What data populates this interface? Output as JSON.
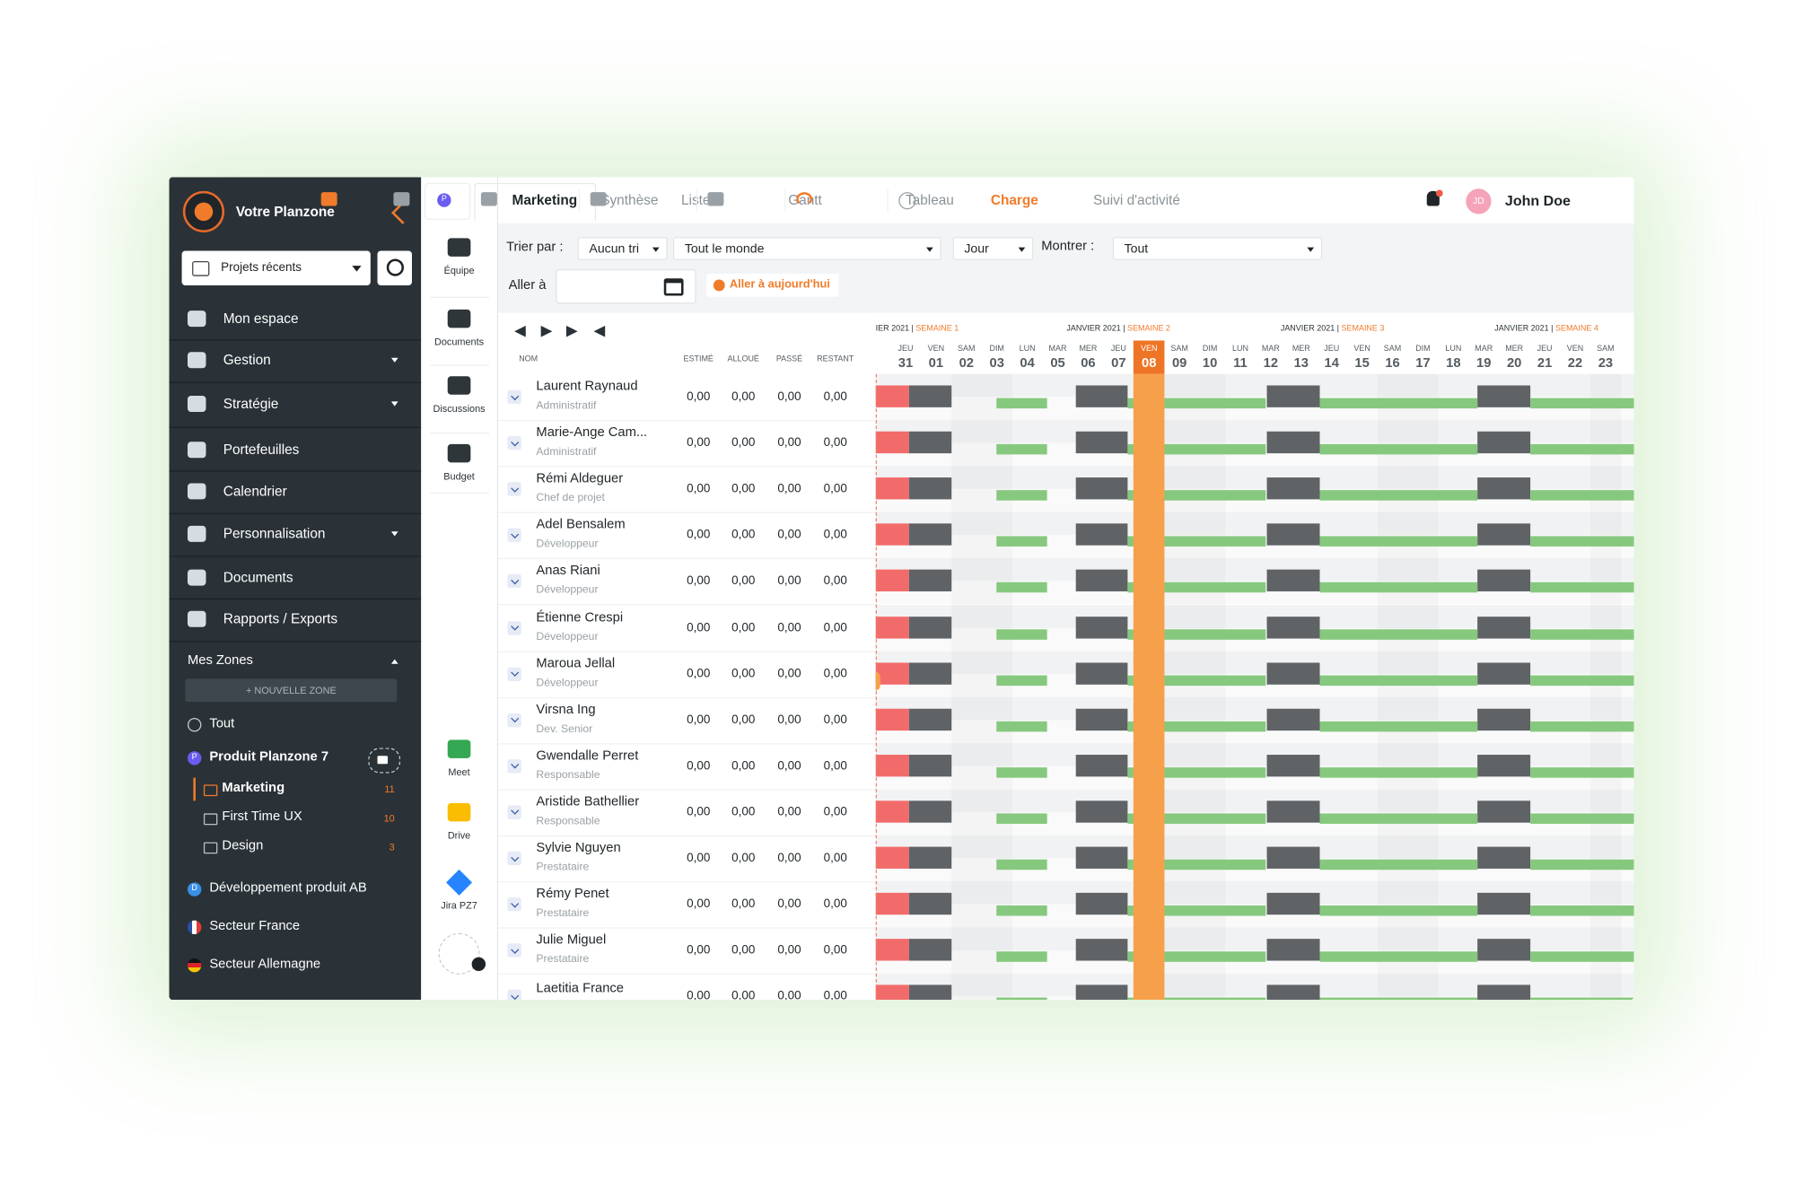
{
  "sidebar": {
    "brand": "Votre Planzone",
    "recent": "Projets récents",
    "nav": [
      {
        "label": "Mon espace"
      },
      {
        "label": "Gestion",
        "caret": true
      },
      {
        "label": "Stratégie",
        "caret": true
      },
      {
        "label": "Portefeuilles"
      },
      {
        "label": "Calendrier"
      },
      {
        "label": "Personnalisation",
        "caret": true
      },
      {
        "label": "Documents"
      },
      {
        "label": "Rapports / Exports"
      }
    ],
    "zones_title": "Mes Zones",
    "new_zone": "+ NOUVELLE ZONE",
    "zones": [
      {
        "label": "Tout"
      },
      {
        "label": "Produit Planzone 7",
        "badge": "P"
      },
      {
        "label": "Marketing",
        "count": 11
      },
      {
        "label": "First Time UX",
        "count": 10
      },
      {
        "label": "Design",
        "count": 3
      },
      {
        "label": "Développement produit AB",
        "badge": "D"
      },
      {
        "label": "Secteur France"
      },
      {
        "label": "Secteur Allemagne"
      }
    ]
  },
  "tools": [
    "Équipe",
    "Documents",
    "Discussions",
    "Budget",
    "Meet",
    "Drive",
    "Jira PZ7"
  ],
  "topbar": {
    "badge": "P",
    "tabs": [
      "Marketing",
      "Synthèse",
      "Listes",
      "Gantt",
      "Tableau",
      "Charge",
      "Suivi d'activité"
    ],
    "initials": "JD",
    "user": "John Doe"
  },
  "filters": {
    "sort_label": "Trier par :",
    "sort": "Aucun tri",
    "people": "Tout le monde",
    "scale": "Jour",
    "show_label": "Montrer :",
    "show": "Tout",
    "goto_label": "Aller à",
    "today_button": "Aller à aujourd'hui"
  },
  "table": {
    "columns": [
      "NOM",
      "ESTIMÉ",
      "ALLOUÉ",
      "PASSÉ",
      "RESTANT"
    ],
    "rows": [
      {
        "name": "Laurent Raynaud",
        "role": "Administratif",
        "values": [
          "0,00",
          "0,00",
          "0,00",
          "0,00"
        ]
      },
      {
        "name": "Marie-Ange Cam...",
        "role": "Administratif",
        "values": [
          "0,00",
          "0,00",
          "0,00",
          "0,00"
        ]
      },
      {
        "name": "Rémi Aldeguer",
        "role": "Chef de projet",
        "values": [
          "0,00",
          "0,00",
          "0,00",
          "0,00"
        ]
      },
      {
        "name": "Adel Bensalem",
        "role": "Développeur",
        "values": [
          "0,00",
          "0,00",
          "0,00",
          "0,00"
        ]
      },
      {
        "name": "Anas Riani",
        "role": "Développeur",
        "values": [
          "0,00",
          "0,00",
          "0,00",
          "0,00"
        ]
      },
      {
        "name": "Étienne Crespi",
        "role": "Développeur",
        "values": [
          "0,00",
          "0,00",
          "0,00",
          "0,00"
        ]
      },
      {
        "name": "Maroua Jellal",
        "role": "Développeur",
        "values": [
          "0,00",
          "0,00",
          "0,00",
          "0,00"
        ]
      },
      {
        "name": "Virsna Ing",
        "role": "Dev. Senior",
        "values": [
          "0,00",
          "0,00",
          "0,00",
          "0,00"
        ]
      },
      {
        "name": "Gwendalle Perret",
        "role": "Responsable",
        "values": [
          "0,00",
          "0,00",
          "0,00",
          "0,00"
        ]
      },
      {
        "name": "Aristide Bathellier",
        "role": "Responsable",
        "values": [
          "0,00",
          "0,00",
          "0,00",
          "0,00"
        ]
      },
      {
        "name": "Sylvie Nguyen",
        "role": "Prestataire",
        "values": [
          "0,00",
          "0,00",
          "0,00",
          "0,00"
        ]
      },
      {
        "name": "Rémy Penet",
        "role": "Prestataire",
        "values": [
          "0,00",
          "0,00",
          "0,00",
          "0,00"
        ]
      },
      {
        "name": "Julie Miguel",
        "role": "Prestataire",
        "values": [
          "0,00",
          "0,00",
          "0,00",
          "0,00"
        ]
      },
      {
        "name": "Laetitia France",
        "values": [
          "0,00",
          "0,00",
          "0,00",
          "0,00"
        ]
      }
    ]
  },
  "calendar": {
    "weeks": [
      {
        "month": "IER 2021 |",
        "week": "SEMAINE 1"
      },
      {
        "month": "JANVIER 2021 |",
        "week": "SEMAINE 2"
      },
      {
        "month": "JANVIER 2021 |",
        "week": "SEMAINE 3"
      },
      {
        "month": "JANVIER 2021 |",
        "week": "SEMAINE 4"
      }
    ],
    "days": [
      {
        "wd": "JEU",
        "d": "31"
      },
      {
        "wd": "VEN",
        "d": "01"
      },
      {
        "wd": "SAM",
        "d": "02"
      },
      {
        "wd": "DIM",
        "d": "03"
      },
      {
        "wd": "LUN",
        "d": "04"
      },
      {
        "wd": "MAR",
        "d": "05"
      },
      {
        "wd": "MER",
        "d": "06"
      },
      {
        "wd": "JEU",
        "d": "07"
      },
      {
        "wd": "VEN",
        "d": "08",
        "today": true
      },
      {
        "wd": "SAM",
        "d": "09"
      },
      {
        "wd": "DIM",
        "d": "10"
      },
      {
        "wd": "LUN",
        "d": "11"
      },
      {
        "wd": "MAR",
        "d": "12"
      },
      {
        "wd": "MER",
        "d": "13"
      },
      {
        "wd": "JEU",
        "d": "14"
      },
      {
        "wd": "VEN",
        "d": "15"
      },
      {
        "wd": "SAM",
        "d": "16"
      },
      {
        "wd": "DIM",
        "d": "17"
      },
      {
        "wd": "LUN",
        "d": "18"
      },
      {
        "wd": "MAR",
        "d": "19"
      },
      {
        "wd": "MER",
        "d": "20"
      },
      {
        "wd": "JEU",
        "d": "21"
      },
      {
        "wd": "VEN",
        "d": "22"
      },
      {
        "wd": "SAM",
        "d": "23"
      }
    ]
  }
}
